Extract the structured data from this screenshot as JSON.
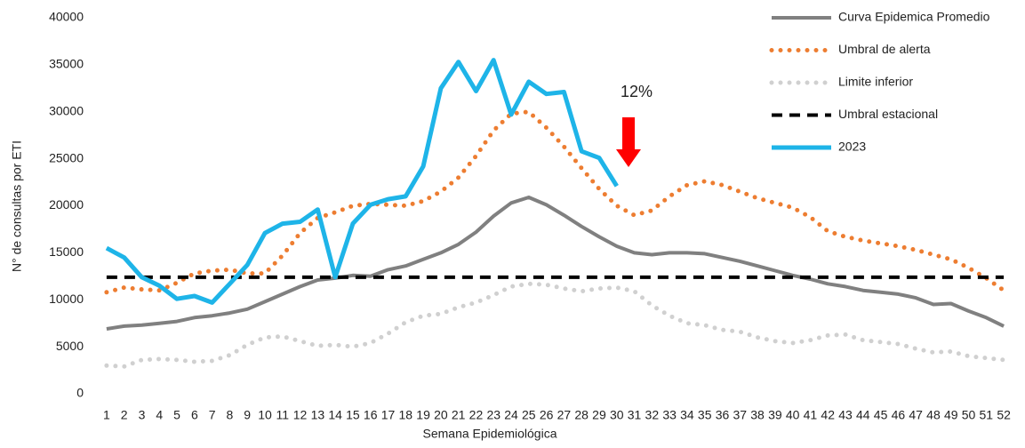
{
  "chart_data": {
    "type": "line",
    "x_label": "Semana Epidemiológica",
    "y_label": "N° de consultas por ETI",
    "annotation": "12%",
    "categories": [
      "1",
      "2",
      "3",
      "4",
      "5",
      "6",
      "7",
      "8",
      "9",
      "10",
      "11",
      "12",
      "13",
      "14",
      "15",
      "16",
      "17",
      "18",
      "19",
      "20",
      "21",
      "22",
      "23",
      "24",
      "25",
      "26",
      "27",
      "28",
      "29",
      "30",
      "31",
      "32",
      "33",
      "34",
      "35",
      "36",
      "37",
      "38",
      "39",
      "40",
      "41",
      "42",
      "43",
      "44",
      "45",
      "46",
      "47",
      "48",
      "49",
      "50",
      "51",
      "52"
    ],
    "ylim": [
      0,
      40000
    ],
    "yticks": [
      0,
      5000,
      10000,
      15000,
      20000,
      25000,
      30000,
      35000,
      40000
    ],
    "grid": false,
    "legend": "top-right",
    "series": [
      {
        "name": "Curva Epidemica Promedio",
        "color": "#808080",
        "style": "solid",
        "values": [
          6900,
          7200,
          7300,
          7500,
          7700,
          8100,
          8300,
          8600,
          9000,
          9800,
          10600,
          11400,
          12100,
          12300,
          12600,
          12500,
          13200,
          13600,
          14300,
          15000,
          15900,
          17200,
          18900,
          20300,
          20900,
          20100,
          19000,
          17800,
          16700,
          15700,
          15000,
          14800,
          15000,
          15000,
          14900,
          14500,
          14100,
          13600,
          13100,
          12600,
          12200,
          11700,
          11400,
          11000,
          10800,
          10600,
          10200,
          9500,
          9600,
          8800,
          8100,
          7200
        ]
      },
      {
        "name": "Umbral de alerta",
        "color": "#ed7d31",
        "style": "dotted",
        "values": [
          10800,
          11300,
          11100,
          11000,
          11800,
          12800,
          13100,
          13200,
          12800,
          12800,
          14700,
          17100,
          18700,
          19300,
          20000,
          20200,
          20100,
          20000,
          20500,
          21500,
          23000,
          25300,
          28000,
          29800,
          30000,
          28300,
          26300,
          24000,
          21800,
          20000,
          19000,
          19500,
          21000,
          22200,
          22600,
          22200,
          21500,
          20800,
          20300,
          19800,
          18800,
          17300,
          16700,
          16300,
          16000,
          15700,
          15300,
          14800,
          14300,
          13400,
          12300,
          11000
        ]
      },
      {
        "name": "Limite inferior",
        "color": "#d0d0d0",
        "style": "dotted",
        "values": [
          3000,
          2900,
          3600,
          3700,
          3600,
          3400,
          3500,
          4100,
          5200,
          6000,
          6100,
          5600,
          5100,
          5200,
          5000,
          5400,
          6400,
          7600,
          8300,
          8500,
          9200,
          9700,
          10500,
          11400,
          11700,
          11600,
          11200,
          10900,
          11200,
          11300,
          10900,
          9400,
          8300,
          7500,
          7300,
          6800,
          6600,
          6000,
          5600,
          5400,
          5700,
          6200,
          6300,
          5700,
          5500,
          5300,
          4800,
          4400,
          4500,
          4000,
          3800,
          3600
        ]
      },
      {
        "name": "Umbral estacional",
        "color": "#000000",
        "style": "dashed",
        "values": [
          12400,
          12400,
          12400,
          12400,
          12400,
          12400,
          12400,
          12400,
          12400,
          12400,
          12400,
          12400,
          12400,
          12400,
          12400,
          12400,
          12400,
          12400,
          12400,
          12400,
          12400,
          12400,
          12400,
          12400,
          12400,
          12400,
          12400,
          12400,
          12400,
          12400,
          12400,
          12400,
          12400,
          12400,
          12400,
          12400,
          12400,
          12400,
          12400,
          12400,
          12400,
          12400,
          12400,
          12400,
          12400,
          12400,
          12400,
          12400,
          12400,
          12400,
          12400,
          12400
        ]
      },
      {
        "name": "2023",
        "color": "#1eb4e8",
        "style": "solid",
        "values": [
          15500,
          14500,
          12400,
          11500,
          10100,
          10400,
          9700,
          11700,
          13700,
          17100,
          18100,
          18300,
          19600,
          12400,
          18100,
          20100,
          20700,
          21000,
          24200,
          32500,
          35300,
          32200,
          35500,
          29700,
          33200,
          31900,
          32100,
          25800,
          25100,
          22100,
          null,
          null,
          null,
          null,
          null,
          null,
          null,
          null,
          null,
          null,
          null,
          null,
          null,
          null,
          null,
          null,
          null,
          null,
          null,
          null,
          null,
          null
        ]
      }
    ]
  }
}
